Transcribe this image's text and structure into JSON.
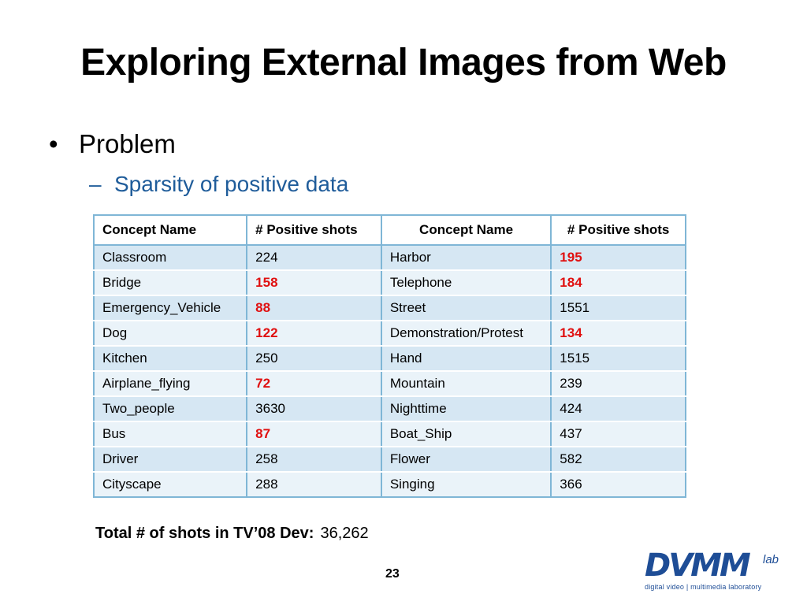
{
  "title": "Exploring External Images from Web",
  "bullet": "Problem",
  "sub_bullet": "Sparsity of positive data",
  "table": {
    "headers": [
      "Concept Name",
      "# Positive shots",
      "Concept Name",
      "# Positive shots"
    ],
    "rows": [
      {
        "c1": "Classroom",
        "v1": "224",
        "v1_red": false,
        "c2": "Harbor",
        "v2": "195",
        "v2_red": true
      },
      {
        "c1": "Bridge",
        "v1": "158",
        "v1_red": true,
        "c2": "Telephone",
        "v2": "184",
        "v2_red": true
      },
      {
        "c1": "Emergency_Vehicle",
        "v1": "88",
        "v1_red": true,
        "c2": "Street",
        "v2": "1551",
        "v2_red": false
      },
      {
        "c1": "Dog",
        "v1": "122",
        "v1_red": true,
        "c2": "Demonstration/Protest",
        "v2": "134",
        "v2_red": true
      },
      {
        "c1": "Kitchen",
        "v1": "250",
        "v1_red": false,
        "c2": "Hand",
        "v2": "1515",
        "v2_red": false
      },
      {
        "c1": "Airplane_flying",
        "v1": "72",
        "v1_red": true,
        "c2": "Mountain",
        "v2": "239",
        "v2_red": false
      },
      {
        "c1": "Two_people",
        "v1": "3630",
        "v1_red": false,
        "c2": "Nighttime",
        "v2": "424",
        "v2_red": false
      },
      {
        "c1": "Bus",
        "v1": "87",
        "v1_red": true,
        "c2": "Boat_Ship",
        "v2": "437",
        "v2_red": false
      },
      {
        "c1": "Driver",
        "v1": "258",
        "v1_red": false,
        "c2": "Flower",
        "v2": "582",
        "v2_red": false
      },
      {
        "c1": "Cityscape",
        "v1": "288",
        "v1_red": false,
        "c2": "Singing",
        "v2": "366",
        "v2_red": false
      }
    ],
    "highlight_color": "#e01010"
  },
  "total": {
    "label": "Total # of shots in TV’08 Dev:",
    "value": "36,262"
  },
  "page_number": "23",
  "logo": {
    "mark": "DVMM",
    "lab": "lab",
    "tagline": "digital video | multimedia laboratory"
  }
}
